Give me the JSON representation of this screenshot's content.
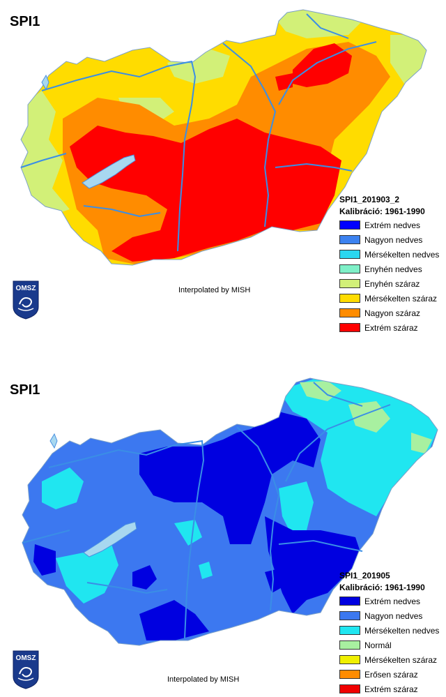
{
  "maps": [
    {
      "title": "SPI1",
      "period": "SPI1_201903_2",
      "calibration": "Kalibráció: 1961-1990",
      "credit": "Interpolated by MISH",
      "logo_text": "OMSZ",
      "legend": [
        {
          "label": "Extrém nedves",
          "color": "#0000ff"
        },
        {
          "label": "Nagyon nedves",
          "color": "#3c82f0"
        },
        {
          "label": "Mérsékelten nedves",
          "color": "#2ad7f0"
        },
        {
          "label": "Enyhén nedves",
          "color": "#7ff0c8"
        },
        {
          "label": "Enyhén száraz",
          "color": "#d2f078"
        },
        {
          "label": "Mérsékelten száraz",
          "color": "#ffdc00"
        },
        {
          "label": "Nagyon száraz",
          "color": "#ff8c00"
        },
        {
          "label": "Extrém száraz",
          "color": "#ff0000"
        }
      ]
    },
    {
      "title": "SPI1",
      "period": "SPI1_201905",
      "calibration": "Kalibráció: 1961-1990",
      "credit": "Interpolated by MISH",
      "logo_text": "OMSZ",
      "legend": [
        {
          "label": "Extrém nedves",
          "color": "#0000e0"
        },
        {
          "label": "Nagyon nedves",
          "color": "#3c78f0"
        },
        {
          "label": "Mérsékelten nedves",
          "color": "#20e6f0"
        },
        {
          "label": "Normál",
          "color": "#a8f0a0"
        },
        {
          "label": "Mérsékelten száraz",
          "color": "#f0f000"
        },
        {
          "label": "Erősen száraz",
          "color": "#ff8c00"
        },
        {
          "label": "Extrém száraz",
          "color": "#f00000"
        }
      ]
    }
  ]
}
